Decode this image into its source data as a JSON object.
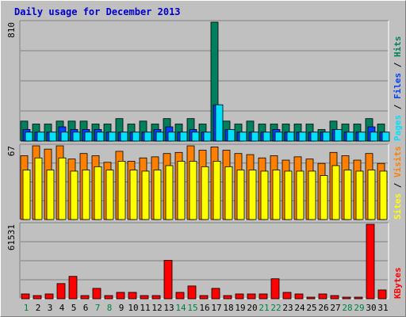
{
  "title": "Daily usage for December 2013",
  "days": [
    "1",
    "2",
    "3",
    "4",
    "5",
    "6",
    "7",
    "8",
    "9",
    "10",
    "11",
    "12",
    "13",
    "14",
    "15",
    "16",
    "17",
    "18",
    "19",
    "20",
    "21",
    "22",
    "23",
    "24",
    "25",
    "26",
    "27",
    "28",
    "29",
    "30",
    "31"
  ],
  "weekend_days": [
    "1",
    "7",
    "8",
    "14",
    "15",
    "21",
    "22",
    "28",
    "29"
  ],
  "colors": {
    "hits": "#00805c",
    "files": "#0040ff",
    "pages": "#00e0ff",
    "visits": "#ff8000",
    "sites": "#ffff00",
    "kbytes": "#ff0000",
    "weekend_label": "#008040",
    "weekday_label": "#000000",
    "title": "#0000cc"
  },
  "chart_data": [
    {
      "type": "bar",
      "name": "hits-files-pages",
      "ymax_label": "810",
      "ylim": [
        0,
        810
      ],
      "legend": [
        "Pages",
        "Files",
        "Hits"
      ],
      "legend_separator": "/",
      "series": [
        {
          "name": "Hits",
          "values": [
            136,
            116,
            116,
            136,
            136,
            136,
            116,
            116,
            153,
            116,
            136,
            116,
            153,
            116,
            153,
            116,
            810,
            136,
            116,
            136,
            116,
            116,
            116,
            116,
            116,
            79,
            136,
            116,
            116,
            153,
            116
          ]
        },
        {
          "name": "Files",
          "values": [
            79,
            61,
            61,
            97,
            79,
            79,
            79,
            61,
            61,
            61,
            61,
            79,
            97,
            61,
            79,
            61,
            247,
            79,
            61,
            61,
            61,
            79,
            61,
            61,
            61,
            61,
            79,
            61,
            61,
            97,
            61
          ]
        },
        {
          "name": "Pages",
          "values": [
            61,
            61,
            61,
            61,
            61,
            61,
            61,
            61,
            61,
            61,
            61,
            61,
            61,
            61,
            61,
            61,
            247,
            79,
            61,
            61,
            61,
            61,
            61,
            61,
            61,
            61,
            79,
            61,
            61,
            61,
            61
          ]
        }
      ]
    },
    {
      "type": "bar",
      "name": "visits-sites",
      "ymax_label": "67",
      "ylim": [
        0,
        67
      ],
      "legend": [
        "Sites",
        "Visits"
      ],
      "legend_separator": "/",
      "series": [
        {
          "name": "Visits",
          "values": [
            58,
            67,
            64,
            67,
            55,
            60,
            58,
            52,
            62,
            53,
            56,
            57,
            60,
            61,
            67,
            63,
            66,
            63,
            60,
            59,
            56,
            58,
            54,
            57,
            55,
            51,
            61,
            58,
            54,
            60,
            51
          ]
        },
        {
          "name": "Sites",
          "values": [
            45,
            56,
            45,
            56,
            44,
            45,
            48,
            45,
            53,
            45,
            44,
            45,
            49,
            53,
            53,
            48,
            53,
            48,
            45,
            45,
            44,
            45,
            44,
            44,
            44,
            40,
            49,
            45,
            44,
            45,
            44
          ]
        }
      ]
    },
    {
      "type": "bar",
      "name": "kbytes",
      "ymax_label": "61531",
      "ylim": [
        0,
        61531
      ],
      "legend": [
        "KBytes"
      ],
      "series": [
        {
          "name": "KBytes",
          "values": [
            3968,
            2646,
            3968,
            12564,
            18518,
            2646,
            8598,
            2646,
            5291,
            5291,
            2646,
            2646,
            31750,
            5291,
            10581,
            2646,
            8598,
            2646,
            3968,
            3968,
            3968,
            16537,
            5291,
            3968,
            1323,
            3968,
            2646,
            1323,
            1323,
            61531,
            7276
          ]
        }
      ]
    }
  ]
}
